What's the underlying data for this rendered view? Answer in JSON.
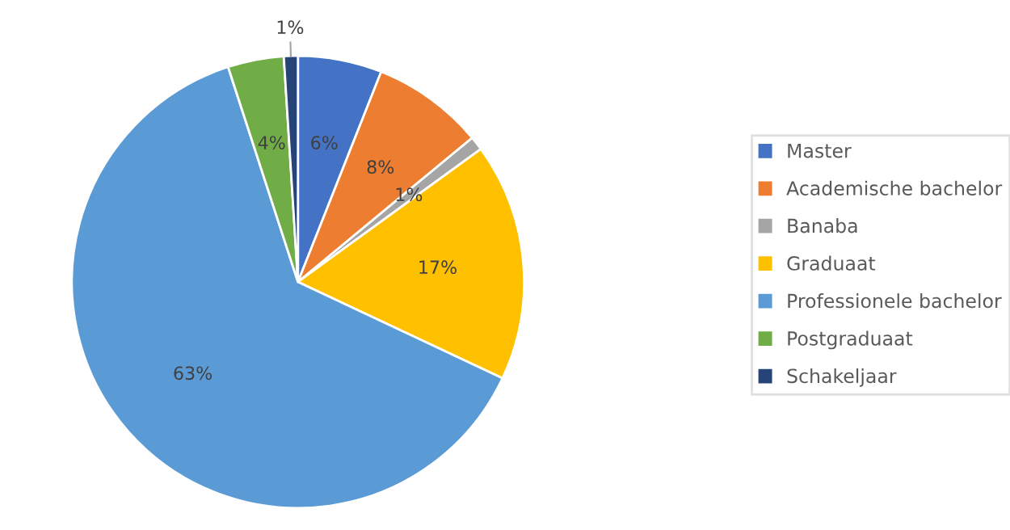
{
  "chart_data": {
    "type": "pie",
    "categories": [
      "Master",
      "Academische bachelor",
      "Banaba",
      "Graduaat",
      "Professionele bachelor",
      "Postgraduaat",
      "Schakeljaar"
    ],
    "values": [
      6,
      8,
      1,
      17,
      63,
      4,
      1
    ],
    "colors": [
      "#4472c4",
      "#ed7d31",
      "#a5a5a5",
      "#ffc000",
      "#5b9bd5",
      "#70ad47",
      "#264478"
    ],
    "value_labels": [
      "6%",
      "8%",
      "1%",
      "17%",
      "63%",
      "4%",
      "1%"
    ],
    "legend": "right"
  }
}
